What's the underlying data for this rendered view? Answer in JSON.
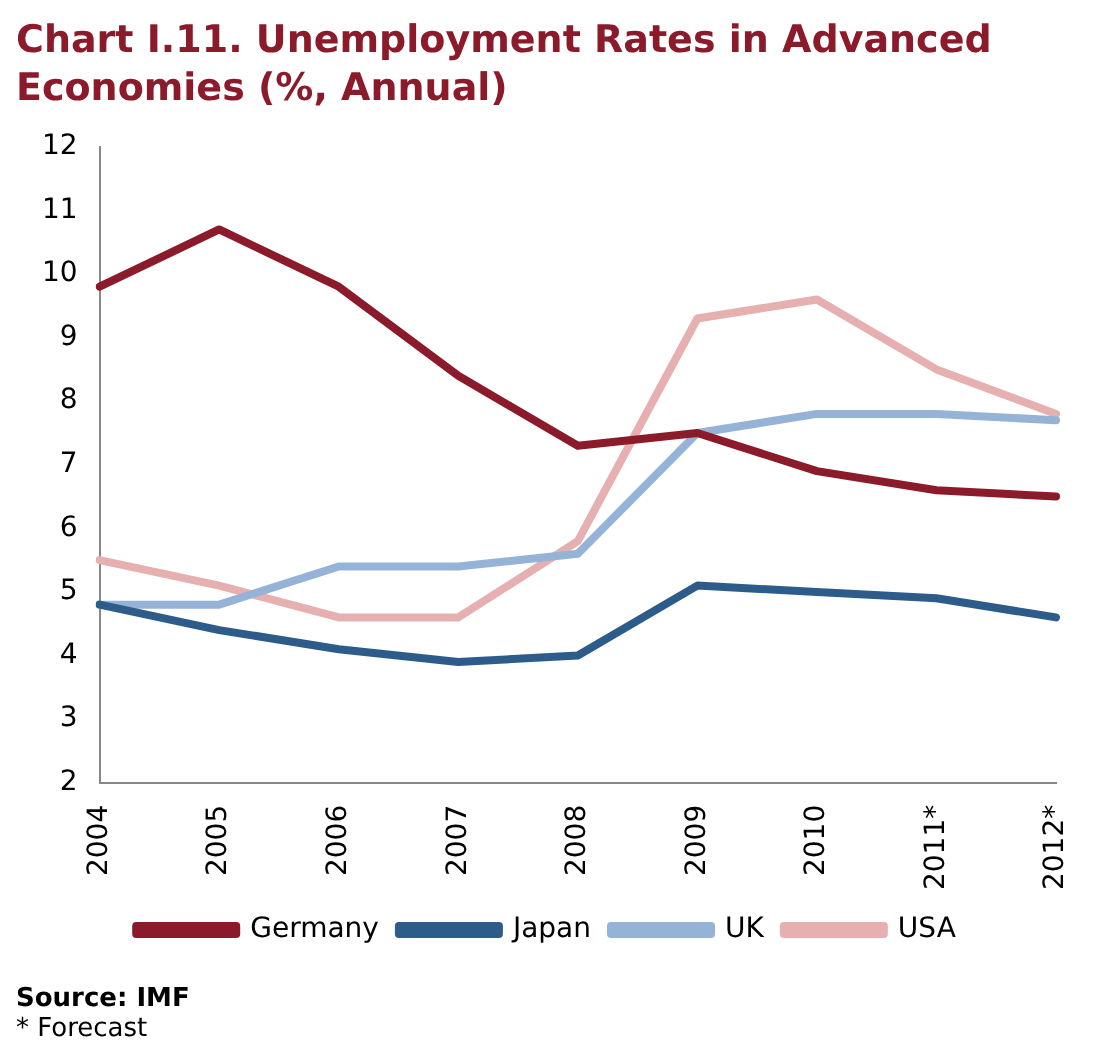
{
  "chart_data": {
    "type": "line",
    "title": "Chart I.11. Unemployment Rates in Advanced Economies (%, Annual)",
    "categories": [
      "2004",
      "2005",
      "2006",
      "2007",
      "2008",
      "2009",
      "2010",
      "2011*",
      "2012*"
    ],
    "series": [
      {
        "name": "Germany",
        "color": "#8b1a2b",
        "values": [
          9.8,
          10.7,
          9.8,
          8.4,
          7.3,
          7.5,
          6.9,
          6.6,
          6.5
        ]
      },
      {
        "name": "Japan",
        "color": "#2e5c8a",
        "values": [
          4.8,
          4.4,
          4.1,
          3.9,
          4.0,
          5.1,
          5.0,
          4.9,
          4.6
        ]
      },
      {
        "name": "UK",
        "color": "#95b3d7",
        "values": [
          4.8,
          4.8,
          5.4,
          5.4,
          5.6,
          7.5,
          7.8,
          7.8,
          7.7
        ]
      },
      {
        "name": "USA",
        "color": "#e6b0b0",
        "values": [
          5.5,
          5.1,
          4.6,
          4.6,
          5.8,
          9.3,
          9.6,
          8.5,
          7.8
        ]
      }
    ],
    "ylim": [
      2,
      12
    ],
    "yticks": [
      2,
      3,
      4,
      5,
      6,
      7,
      8,
      9,
      10,
      11,
      12
    ],
    "grid": false,
    "legend": "bottom",
    "marker": "none",
    "line_style": "solid",
    "annotations": [
      "Source: IMF",
      "* Forecast"
    ]
  }
}
